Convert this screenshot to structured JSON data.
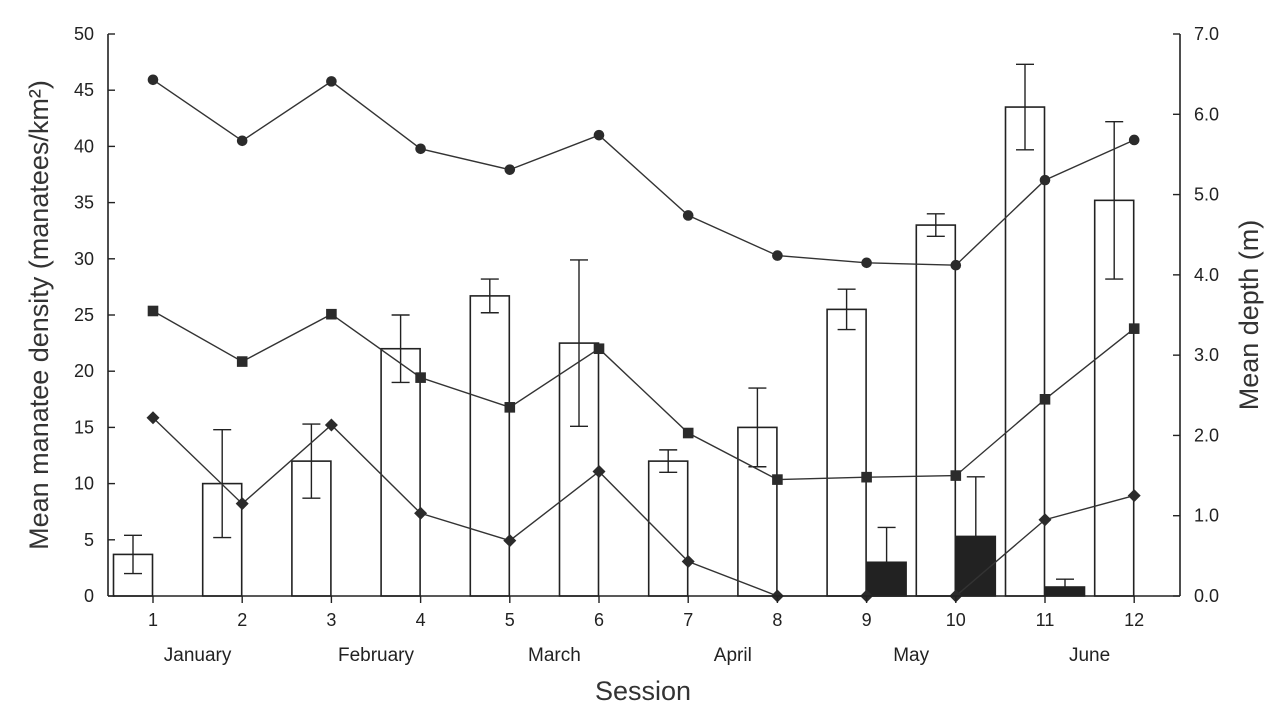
{
  "chart_data": {
    "type": "bar",
    "x_label": "Session",
    "y_label_left": "Mean manatee density (manatees/km²)",
    "y_label_right": "Mean depth (m)",
    "categories": [
      "1",
      "2",
      "3",
      "4",
      "5",
      "6",
      "7",
      "8",
      "9",
      "10",
      "11",
      "12"
    ],
    "month_labels": [
      {
        "label": "January",
        "center_session": 1.5
      },
      {
        "label": "February",
        "center_session": 3.5
      },
      {
        "label": "March",
        "center_session": 5.5
      },
      {
        "label": "April",
        "center_session": 7.5
      },
      {
        "label": "May",
        "center_session": 9.5
      },
      {
        "label": "June",
        "center_session": 11.5
      }
    ],
    "left_axis": {
      "min": 0,
      "max": 50,
      "ticks": [
        "0",
        "5",
        "10",
        "15",
        "20",
        "25",
        "30",
        "35",
        "40",
        "45",
        "50"
      ]
    },
    "right_axis": {
      "min": 0,
      "max": 7,
      "ticks": [
        "0.0",
        "1.0",
        "2.0",
        "3.0",
        "4.0",
        "5.0",
        "6.0",
        "7.0"
      ]
    },
    "bar_series": [
      {
        "style": "open",
        "axis": "left",
        "values": [
          3.7,
          10.0,
          12.0,
          22.0,
          26.7,
          22.5,
          12.0,
          15.0,
          25.5,
          33.0,
          43.5,
          35.2
        ],
        "error": [
          1.7,
          4.8,
          3.3,
          3.0,
          1.5,
          7.4,
          1.0,
          3.5,
          1.8,
          1.0,
          3.8,
          7.0
        ]
      },
      {
        "style": "filled",
        "axis": "left",
        "values": [
          0,
          0,
          0,
          0,
          0,
          0,
          0,
          0,
          3.0,
          5.3,
          0.8,
          0
        ],
        "error": [
          0,
          0,
          0,
          0,
          0,
          0,
          0,
          0,
          3.1,
          5.3,
          0.7,
          0
        ]
      }
    ],
    "line_series": [
      {
        "marker": "circle",
        "axis": "right",
        "values": [
          6.43,
          5.67,
          6.41,
          5.57,
          5.31,
          5.74,
          4.74,
          4.24,
          4.15,
          4.12,
          5.18,
          5.68
        ]
      },
      {
        "marker": "square",
        "axis": "right",
        "values": [
          3.55,
          2.92,
          3.51,
          2.72,
          2.35,
          3.08,
          2.03,
          1.45,
          1.48,
          1.5,
          2.45,
          3.33
        ]
      },
      {
        "marker": "diamond",
        "axis": "right",
        "values": [
          2.22,
          1.15,
          2.13,
          1.03,
          0.69,
          1.55,
          0.43,
          0.0,
          0.0,
          0.0,
          0.95,
          1.25
        ]
      }
    ],
    "colors": {
      "line": "#333333",
      "marker": "#2b2b2b",
      "bar_open_fill": "#ffffff",
      "bar_filled": "#222222",
      "axis": "#222222"
    },
    "grid": false,
    "legend": "none"
  }
}
